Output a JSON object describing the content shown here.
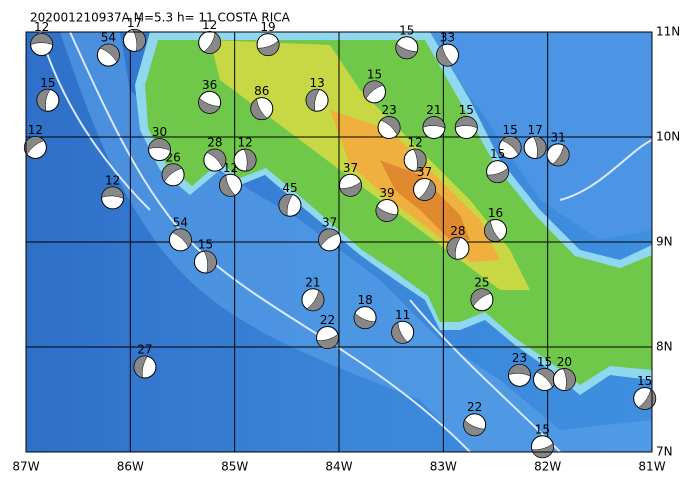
{
  "map": {
    "title": "202001210937A M=5.3 h= 11 COSTA RICA",
    "xlim": [
      -87,
      -81
    ],
    "ylim": [
      7,
      11
    ],
    "xticks": [
      {
        "value": -87,
        "label": "87W"
      },
      {
        "value": -86,
        "label": "86W"
      },
      {
        "value": -85,
        "label": "85W"
      },
      {
        "value": -84,
        "label": "84W"
      },
      {
        "value": -83,
        "label": "83W"
      },
      {
        "value": -82,
        "label": "82W"
      },
      {
        "value": -81,
        "label": "81W"
      }
    ],
    "yticks": [
      {
        "value": 7,
        "label": "7N"
      },
      {
        "value": 8,
        "label": "8N"
      },
      {
        "value": 9,
        "label": "9N"
      },
      {
        "value": 10,
        "label": "10N"
      },
      {
        "value": 11,
        "label": "11N"
      }
    ],
    "grid": true,
    "events": [
      {
        "lon": -86.85,
        "lat": 10.88,
        "depth": 12
      },
      {
        "lon": -86.21,
        "lat": 10.78,
        "depth": 54
      },
      {
        "lon": -85.96,
        "lat": 10.92,
        "depth": 17
      },
      {
        "lon": -85.24,
        "lat": 10.9,
        "depth": 12
      },
      {
        "lon": -84.68,
        "lat": 10.88,
        "depth": 19
      },
      {
        "lon": -83.35,
        "lat": 10.85,
        "depth": 15
      },
      {
        "lon": -82.96,
        "lat": 10.78,
        "depth": 33
      },
      {
        "lon": -86.79,
        "lat": 10.35,
        "depth": 15
      },
      {
        "lon": -86.91,
        "lat": 9.9,
        "depth": 12
      },
      {
        "lon": -82.78,
        "lat": 10.09,
        "depth": 15
      },
      {
        "lon": -82.36,
        "lat": 9.9,
        "depth": 15
      },
      {
        "lon": -82.12,
        "lat": 9.9,
        "depth": 17
      },
      {
        "lon": -81.9,
        "lat": 9.83,
        "depth": 31
      },
      {
        "lon": -82.48,
        "lat": 9.67,
        "depth": 15
      },
      {
        "lon": -85.24,
        "lat": 10.33,
        "depth": 36
      },
      {
        "lon": -84.74,
        "lat": 10.27,
        "depth": 86
      },
      {
        "lon": -84.21,
        "lat": 10.35,
        "depth": 13
      },
      {
        "lon": -83.66,
        "lat": 10.43,
        "depth": 15
      },
      {
        "lon": -83.09,
        "lat": 10.09,
        "depth": 21
      },
      {
        "lon": -83.52,
        "lat": 10.09,
        "depth": 23
      },
      {
        "lon": -83.27,
        "lat": 9.78,
        "depth": 12
      },
      {
        "lon": -83.18,
        "lat": 9.5,
        "depth": 37
      },
      {
        "lon": -83.89,
        "lat": 9.54,
        "depth": 37
      },
      {
        "lon": -83.54,
        "lat": 9.3,
        "depth": 39
      },
      {
        "lon": -82.5,
        "lat": 9.11,
        "depth": 16
      },
      {
        "lon": -82.86,
        "lat": 8.94,
        "depth": 28
      },
      {
        "lon": -85.59,
        "lat": 9.64,
        "depth": 26
      },
      {
        "lon": -86.17,
        "lat": 9.42,
        "depth": 12
      },
      {
        "lon": -85.52,
        "lat": 9.02,
        "depth": 54
      },
      {
        "lon": -85.28,
        "lat": 8.81,
        "depth": 15
      },
      {
        "lon": -84.25,
        "lat": 8.45,
        "depth": 21
      },
      {
        "lon": -84.11,
        "lat": 8.09,
        "depth": 22
      },
      {
        "lon": -83.75,
        "lat": 8.28,
        "depth": 18
      },
      {
        "lon": -83.39,
        "lat": 8.14,
        "depth": 11
      },
      {
        "lon": -85.86,
        "lat": 7.81,
        "depth": 27
      },
      {
        "lon": -82.63,
        "lat": 8.45,
        "depth": 25
      },
      {
        "lon": -82.27,
        "lat": 7.73,
        "depth": 23
      },
      {
        "lon": -82.03,
        "lat": 7.69,
        "depth": 15
      },
      {
        "lon": -81.84,
        "lat": 7.69,
        "depth": 20
      },
      {
        "lon": -81.07,
        "lat": 7.51,
        "depth": 15
      },
      {
        "lon": -82.05,
        "lat": 7.05,
        "depth": 15
      },
      {
        "lon": -82.7,
        "lat": 7.26,
        "depth": 22
      },
      {
        "lon": -85.04,
        "lat": 9.54,
        "depth": 12
      },
      {
        "lon": -84.47,
        "lat": 9.35,
        "depth": 45
      },
      {
        "lon": -84.09,
        "lat": 9.02,
        "depth": 37
      },
      {
        "lon": -85.72,
        "lat": 9.88,
        "depth": 30
      },
      {
        "lon": -85.19,
        "lat": 9.78,
        "depth": 28
      },
      {
        "lon": -84.9,
        "lat": 9.78,
        "depth": 12
      }
    ]
  }
}
